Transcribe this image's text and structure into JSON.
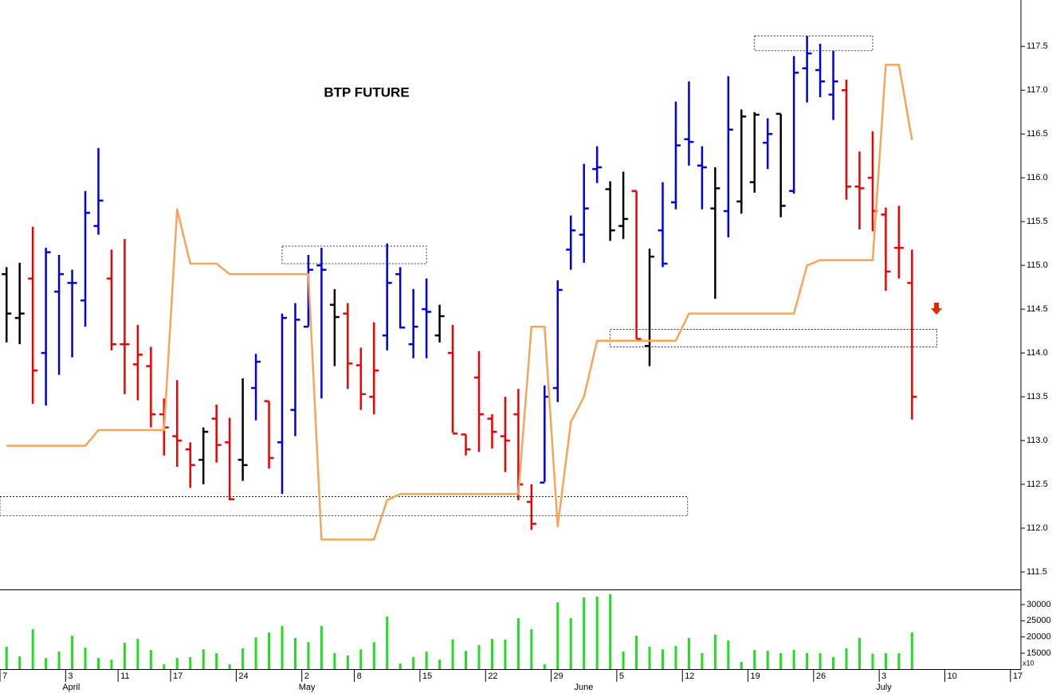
{
  "chart_data": [
    {
      "type": "ohlc",
      "title": "BTP FUTURE",
      "xlim": [
        -0.5,
        77.3
      ],
      "ylim": [
        111.3,
        118.03
      ],
      "yticks": [
        111.5,
        {
          "value": 112,
          "label": "112.0"
        },
        112.5,
        {
          "value": 113,
          "label": "113.0"
        },
        113.5,
        {
          "value": 114,
          "label": "114.0"
        },
        114.5,
        {
          "value": 115,
          "label": "115.0"
        },
        115.5,
        {
          "value": 116,
          "label": "116.0"
        },
        116.5,
        {
          "value": 117,
          "label": "117.0"
        },
        117.5
      ],
      "open": [
        114.9,
        114.4,
        114.85,
        114.0,
        114.7,
        114.8,
        114.6,
        115.45,
        114.85,
        114.1,
        113.87,
        113.85,
        113.3,
        113.05,
        112.9,
        112.78,
        113.25,
        112.98,
        112.78,
        113.6,
        113.45,
        112.98,
        113.35,
        114.3,
        115.0,
        114.55,
        114.45,
        113.86,
        113.5,
        114.2,
        114.9,
        114.1,
        114.5,
        114.2,
        114.0,
        113.07,
        113.72,
        113.25,
        113.05,
        113.3,
        112.3,
        112.52,
        113.6,
        115.18,
        115.35,
        116.1,
        115.87,
        115.45,
        115.85,
        114.08,
        115.4,
        115.72,
        116.44,
        116.14,
        115.65,
        115.62,
        115.73,
        115.95,
        116.4,
        116.73,
        115.85,
        117.25,
        117.23,
        116.95,
        117.0,
        115.9,
        116.0,
        115.58,
        115.2,
        114.8
      ],
      "high": [
        114.98,
        115.03,
        115.44,
        115.2,
        115.12,
        114.95,
        115.85,
        116.34,
        115.18,
        115.3,
        114.32,
        114.07,
        113.48,
        113.69,
        112.98,
        113.15,
        113.41,
        113.26,
        113.71,
        113.99,
        113.45,
        114.45,
        114.57,
        115.12,
        115.2,
        114.73,
        114.57,
        114.06,
        114.35,
        115.25,
        114.98,
        114.73,
        114.85,
        114.55,
        114.32,
        113.07,
        114.02,
        113.3,
        113.5,
        113.59,
        112.5,
        113.63,
        114.83,
        115.57,
        116.16,
        116.36,
        115.96,
        116.07,
        115.85,
        115.19,
        115.95,
        116.87,
        117.1,
        116.36,
        116.12,
        117.16,
        116.78,
        116.75,
        116.68,
        116.73,
        117.39,
        117.62,
        117.53,
        117.45,
        117.12,
        116.3,
        116.53,
        115.66,
        115.68,
        115.18
      ],
      "low": [
        114.12,
        114.1,
        113.42,
        113.4,
        113.75,
        113.95,
        114.3,
        115.35,
        114.03,
        113.53,
        113.46,
        113.15,
        112.83,
        112.7,
        112.46,
        112.5,
        112.75,
        112.32,
        112.54,
        113.23,
        112.68,
        112.39,
        113.05,
        114.3,
        113.48,
        113.85,
        113.59,
        113.35,
        113.3,
        114.03,
        114.28,
        113.94,
        113.94,
        114.12,
        113.09,
        112.83,
        112.87,
        112.91,
        112.64,
        112.32,
        111.98,
        112.53,
        113.44,
        114.95,
        115.03,
        115.94,
        115.28,
        115.3,
        114.16,
        113.85,
        114.98,
        115.64,
        116.14,
        115.64,
        114.62,
        115.32,
        115.59,
        115.83,
        116.1,
        115.55,
        115.82,
        116.86,
        116.92,
        116.66,
        115.75,
        115.41,
        115.39,
        114.71,
        114.85,
        113.24
      ],
      "close": [
        114.45,
        114.45,
        113.8,
        115.15,
        114.9,
        114.8,
        115.6,
        115.74,
        114.1,
        114.1,
        113.98,
        113.3,
        113.15,
        113.0,
        112.72,
        113.1,
        112.95,
        112.33,
        112.72,
        113.9,
        112.8,
        114.4,
        114.38,
        114.95,
        114.95,
        114.41,
        113.88,
        113.53,
        113.8,
        114.8,
        114.29,
        114.3,
        114.47,
        114.42,
        113.08,
        112.9,
        113.3,
        113.1,
        113.0,
        112.5,
        112.05,
        113.5,
        114.72,
        115.4,
        115.65,
        116.12,
        115.4,
        115.53,
        114.16,
        115.1,
        115.02,
        116.37,
        116.41,
        116.12,
        115.88,
        116.55,
        116.7,
        116.72,
        116.5,
        115.68,
        117.2,
        117.42,
        117.1,
        117.1,
        115.9,
        115.88,
        115.62,
        114.93,
        115.2,
        113.5
      ],
      "colors": [
        "#000000",
        "#000000",
        "#ee0000",
        "#0000dd",
        "#0000dd",
        "#0000dd",
        "#0000dd",
        "#0000dd",
        "#ee0000",
        "#ee0000",
        "#ee0000",
        "#ee0000",
        "#ee0000",
        "#ee0000",
        "#ee0000",
        "#000000",
        "#ee0000",
        "#ee0000",
        "#000000",
        "#0000dd",
        "#ee0000",
        "#0000dd",
        "#0000dd",
        "#0000dd",
        "#0000dd",
        "#000000",
        "#ee0000",
        "#ee0000",
        "#ee0000",
        "#0000dd",
        "#0000dd",
        "#0000dd",
        "#0000dd",
        "#000000",
        "#ee0000",
        "#ee0000",
        "#ee0000",
        "#ee0000",
        "#ee0000",
        "#ee0000",
        "#ee0000",
        "#0000dd",
        "#0000dd",
        "#0000dd",
        "#0000dd",
        "#0000dd",
        "#000000",
        "#000000",
        "#ee0000",
        "#000000",
        "#0000dd",
        "#0000dd",
        "#0000dd",
        "#0000dd",
        "#000000",
        "#0000dd",
        "#000000",
        "#000000",
        "#0000dd",
        "#000000",
        "#0000dd",
        "#0000dd",
        "#0000dd",
        "#0000dd",
        "#ee0000",
        "#ee0000",
        "#ee0000",
        "#ee0000",
        "#ee0000",
        "#ee0000"
      ],
      "line": {
        "color": "#f5a55a",
        "values": [
          112.94,
          112.94,
          112.94,
          112.94,
          112.94,
          112.94,
          112.94,
          113.12,
          113.12,
          113.12,
          113.12,
          113.12,
          113.12,
          115.64,
          115.02,
          115.02,
          115.02,
          114.9,
          114.9,
          114.9,
          114.9,
          114.9,
          114.9,
          114.9,
          111.87,
          111.87,
          111.87,
          111.87,
          111.87,
          112.32,
          112.39,
          112.39,
          112.39,
          112.39,
          112.39,
          112.39,
          112.39,
          112.39,
          112.39,
          112.39,
          114.3,
          114.3,
          112.02,
          113.21,
          113.5,
          114.14,
          114.14,
          114.14,
          114.14,
          114.14,
          114.14,
          114.14,
          114.45,
          114.45,
          114.45,
          114.45,
          114.45,
          114.45,
          114.45,
          114.45,
          114.45,
          115.0,
          115.06,
          115.06,
          115.06,
          115.06,
          115.06,
          117.29,
          117.29,
          116.43
        ]
      },
      "zones": [
        {
          "x": [
            -0.5,
            51.9
          ],
          "y": [
            112.14,
            112.36
          ]
        },
        {
          "x": [
            21,
            32
          ],
          "y": [
            115.02,
            115.22
          ]
        },
        {
          "x": [
            46,
            70.9
          ],
          "y": [
            114.07,
            114.27
          ]
        },
        {
          "x": [
            57,
            66
          ],
          "y": [
            117.45,
            117.62
          ]
        }
      ]
    },
    {
      "type": "volume",
      "color": "#22dd22",
      "scale_note": "x10",
      "xlim": [
        -0.5,
        77.3
      ],
      "ylim": [
        10080,
        34430
      ],
      "yticks": [
        15000,
        20000,
        25000,
        30000
      ],
      "values": [
        17000,
        14000,
        22400,
        13500,
        15500,
        20400,
        16700,
        13500,
        13000,
        18200,
        19400,
        16000,
        11600,
        13500,
        13800,
        16200,
        15000,
        11600,
        16500,
        19900,
        21400,
        23400,
        19700,
        18400,
        23400,
        15000,
        14300,
        16200,
        18400,
        26300,
        11800,
        13800,
        15500,
        13000,
        19200,
        15700,
        17500,
        19400,
        19200,
        25800,
        22400,
        11600,
        30700,
        25800,
        32200,
        32500,
        33200,
        15500,
        20400,
        17000,
        16200,
        17200,
        19700,
        15000,
        20700,
        18900,
        12300,
        16000,
        15700,
        15000,
        16000,
        15000,
        15000,
        13800,
        16500,
        19700,
        14800,
        15000,
        15000,
        21400
      ],
      "xticks": [
        {
          "value": 0,
          "label": "7"
        },
        {
          "value": 5,
          "label": "3"
        },
        {
          "value": 9,
          "label": "11"
        },
        {
          "value": 13,
          "label": "17"
        },
        {
          "value": 18,
          "label": "24"
        },
        {
          "value": 23,
          "label": "2"
        },
        {
          "value": 27,
          "label": "8"
        },
        {
          "value": 32,
          "label": "15"
        },
        {
          "value": 37,
          "label": "22"
        },
        {
          "value": 42,
          "label": "29"
        },
        {
          "value": 47,
          "label": "5"
        },
        {
          "value": 52,
          "label": "12"
        },
        {
          "value": 57,
          "label": "19"
        },
        {
          "value": 62,
          "label": "26"
        },
        {
          "value": 67,
          "label": "3"
        },
        {
          "value": 72,
          "label": "10"
        },
        {
          "value": 77,
          "label": "17"
        }
      ],
      "months": [
        {
          "value": 5,
          "label": "April"
        },
        {
          "value": 23,
          "label": "May"
        },
        {
          "value": 44,
          "label": "June"
        },
        {
          "value": 67,
          "label": "July"
        }
      ]
    }
  ]
}
